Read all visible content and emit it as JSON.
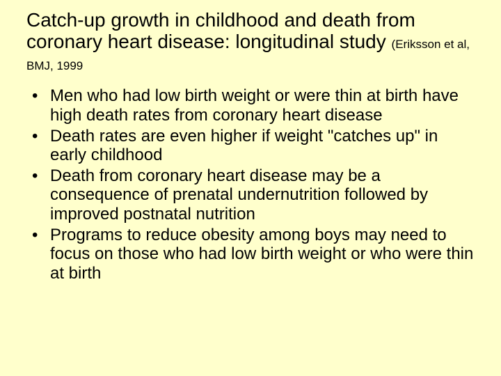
{
  "background_color": "#ffffcc",
  "text_color": "#000000",
  "title": {
    "main": "Catch-up growth in childhood and death from coronary heart disease:  longitudinal study",
    "citation": "(Eriksson et al, BMJ, 1999",
    "main_fontsize": 28,
    "citation_fontsize": 17
  },
  "bullets": {
    "fontsize": 24,
    "items": [
      "Men who had low birth weight or were thin at birth have high death rates from coronary heart disease",
      "Death rates are even higher if weight \"catches up\" in early childhood",
      "Death from coronary heart disease may be a consequence of prenatal undernutrition followed by improved postnatal nutrition",
      "Programs to reduce obesity among boys may need to focus on those who had low birth weight or who were thin at birth"
    ]
  }
}
